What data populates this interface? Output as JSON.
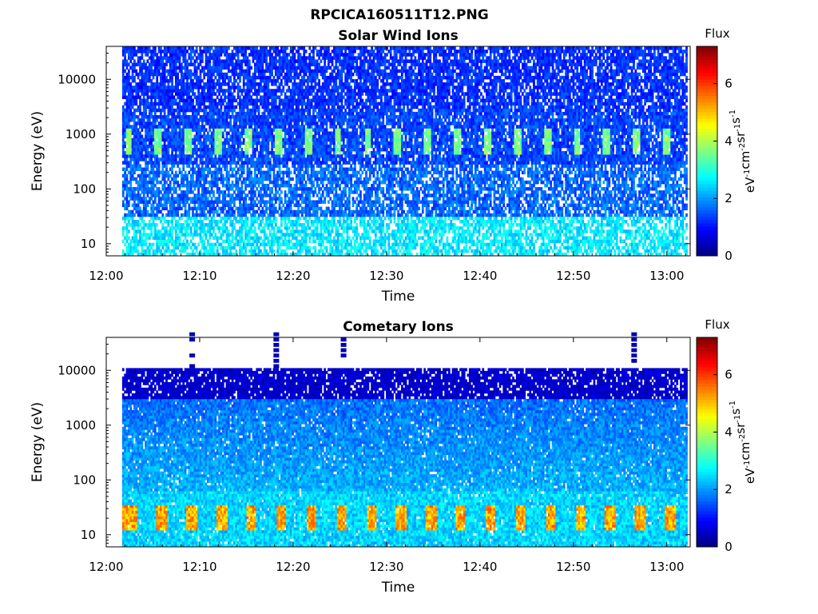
{
  "figure": {
    "title": "RPCICA160511T12.PNG"
  },
  "colorbar": {
    "label_main": "Flux",
    "unit_tokens": [
      [
        "eV",
        "-1"
      ],
      [
        "cm",
        "-2"
      ],
      [
        "sr",
        "-1"
      ],
      [
        "s",
        "-1"
      ]
    ],
    "ticks": [
      "0",
      "2",
      "4",
      "6"
    ],
    "range": [
      0,
      7.3
    ],
    "colormap": "jet"
  },
  "chart_data": [
    {
      "type": "heatmap",
      "title": "Solar Wind Ions",
      "xlabel": "Time",
      "ylabel": "Energy (eV)",
      "x_ticks": [
        "12:00",
        "12:10",
        "12:20",
        "12:30",
        "12:40",
        "12:50",
        "13:00"
      ],
      "x_range_min": [
        0,
        62.5
      ],
      "data_x_range_min": [
        1.7,
        62.2
      ],
      "y_ticks": [
        "10",
        "100",
        "1000",
        "10000"
      ],
      "y_tick_values": [
        10,
        100,
        1000,
        10000
      ],
      "y_scale": "log",
      "y_range": [
        6,
        40000
      ],
      "data_y_range": [
        6,
        40000
      ],
      "pattern": {
        "description_values": "flux in color units 0-7.3",
        "background_high_energy": 0.9,
        "solar_wind_peak_energy": [
          400,
          1300
        ],
        "solar_wind_peak_flux": 3.2,
        "solar_wind_sweep_period_min": 3.2,
        "low_energy_flux": 2.2,
        "gap_fraction_mid": 0.25
      }
    },
    {
      "type": "heatmap",
      "title": "Cometary Ions",
      "xlabel": "Time",
      "ylabel": "Energy (eV)",
      "x_ticks": [
        "12:00",
        "12:10",
        "12:20",
        "12:30",
        "12:40",
        "12:50",
        "13:00"
      ],
      "x_range_min": [
        0,
        62.5
      ],
      "data_x_range_min": [
        1.7,
        62.2
      ],
      "y_ticks": [
        "10",
        "100",
        "1000",
        "10000"
      ],
      "y_tick_values": [
        10,
        100,
        1000,
        10000
      ],
      "y_scale": "log",
      "y_range": [
        6,
        40000
      ],
      "data_y_range": [
        6,
        11000
      ],
      "pattern": {
        "description_values": "flux in color units 0-7.3",
        "background_high_energy": 0.3,
        "mid_energy_flux": 1.3,
        "cometary_peak_energy": [
          12,
          35
        ],
        "cometary_peak_flux": 4.6,
        "cometary_sweep_period_min": 3.2,
        "high_energy_spike_times_min": [
          9.2,
          18.2,
          25.4,
          56.5
        ]
      }
    }
  ]
}
